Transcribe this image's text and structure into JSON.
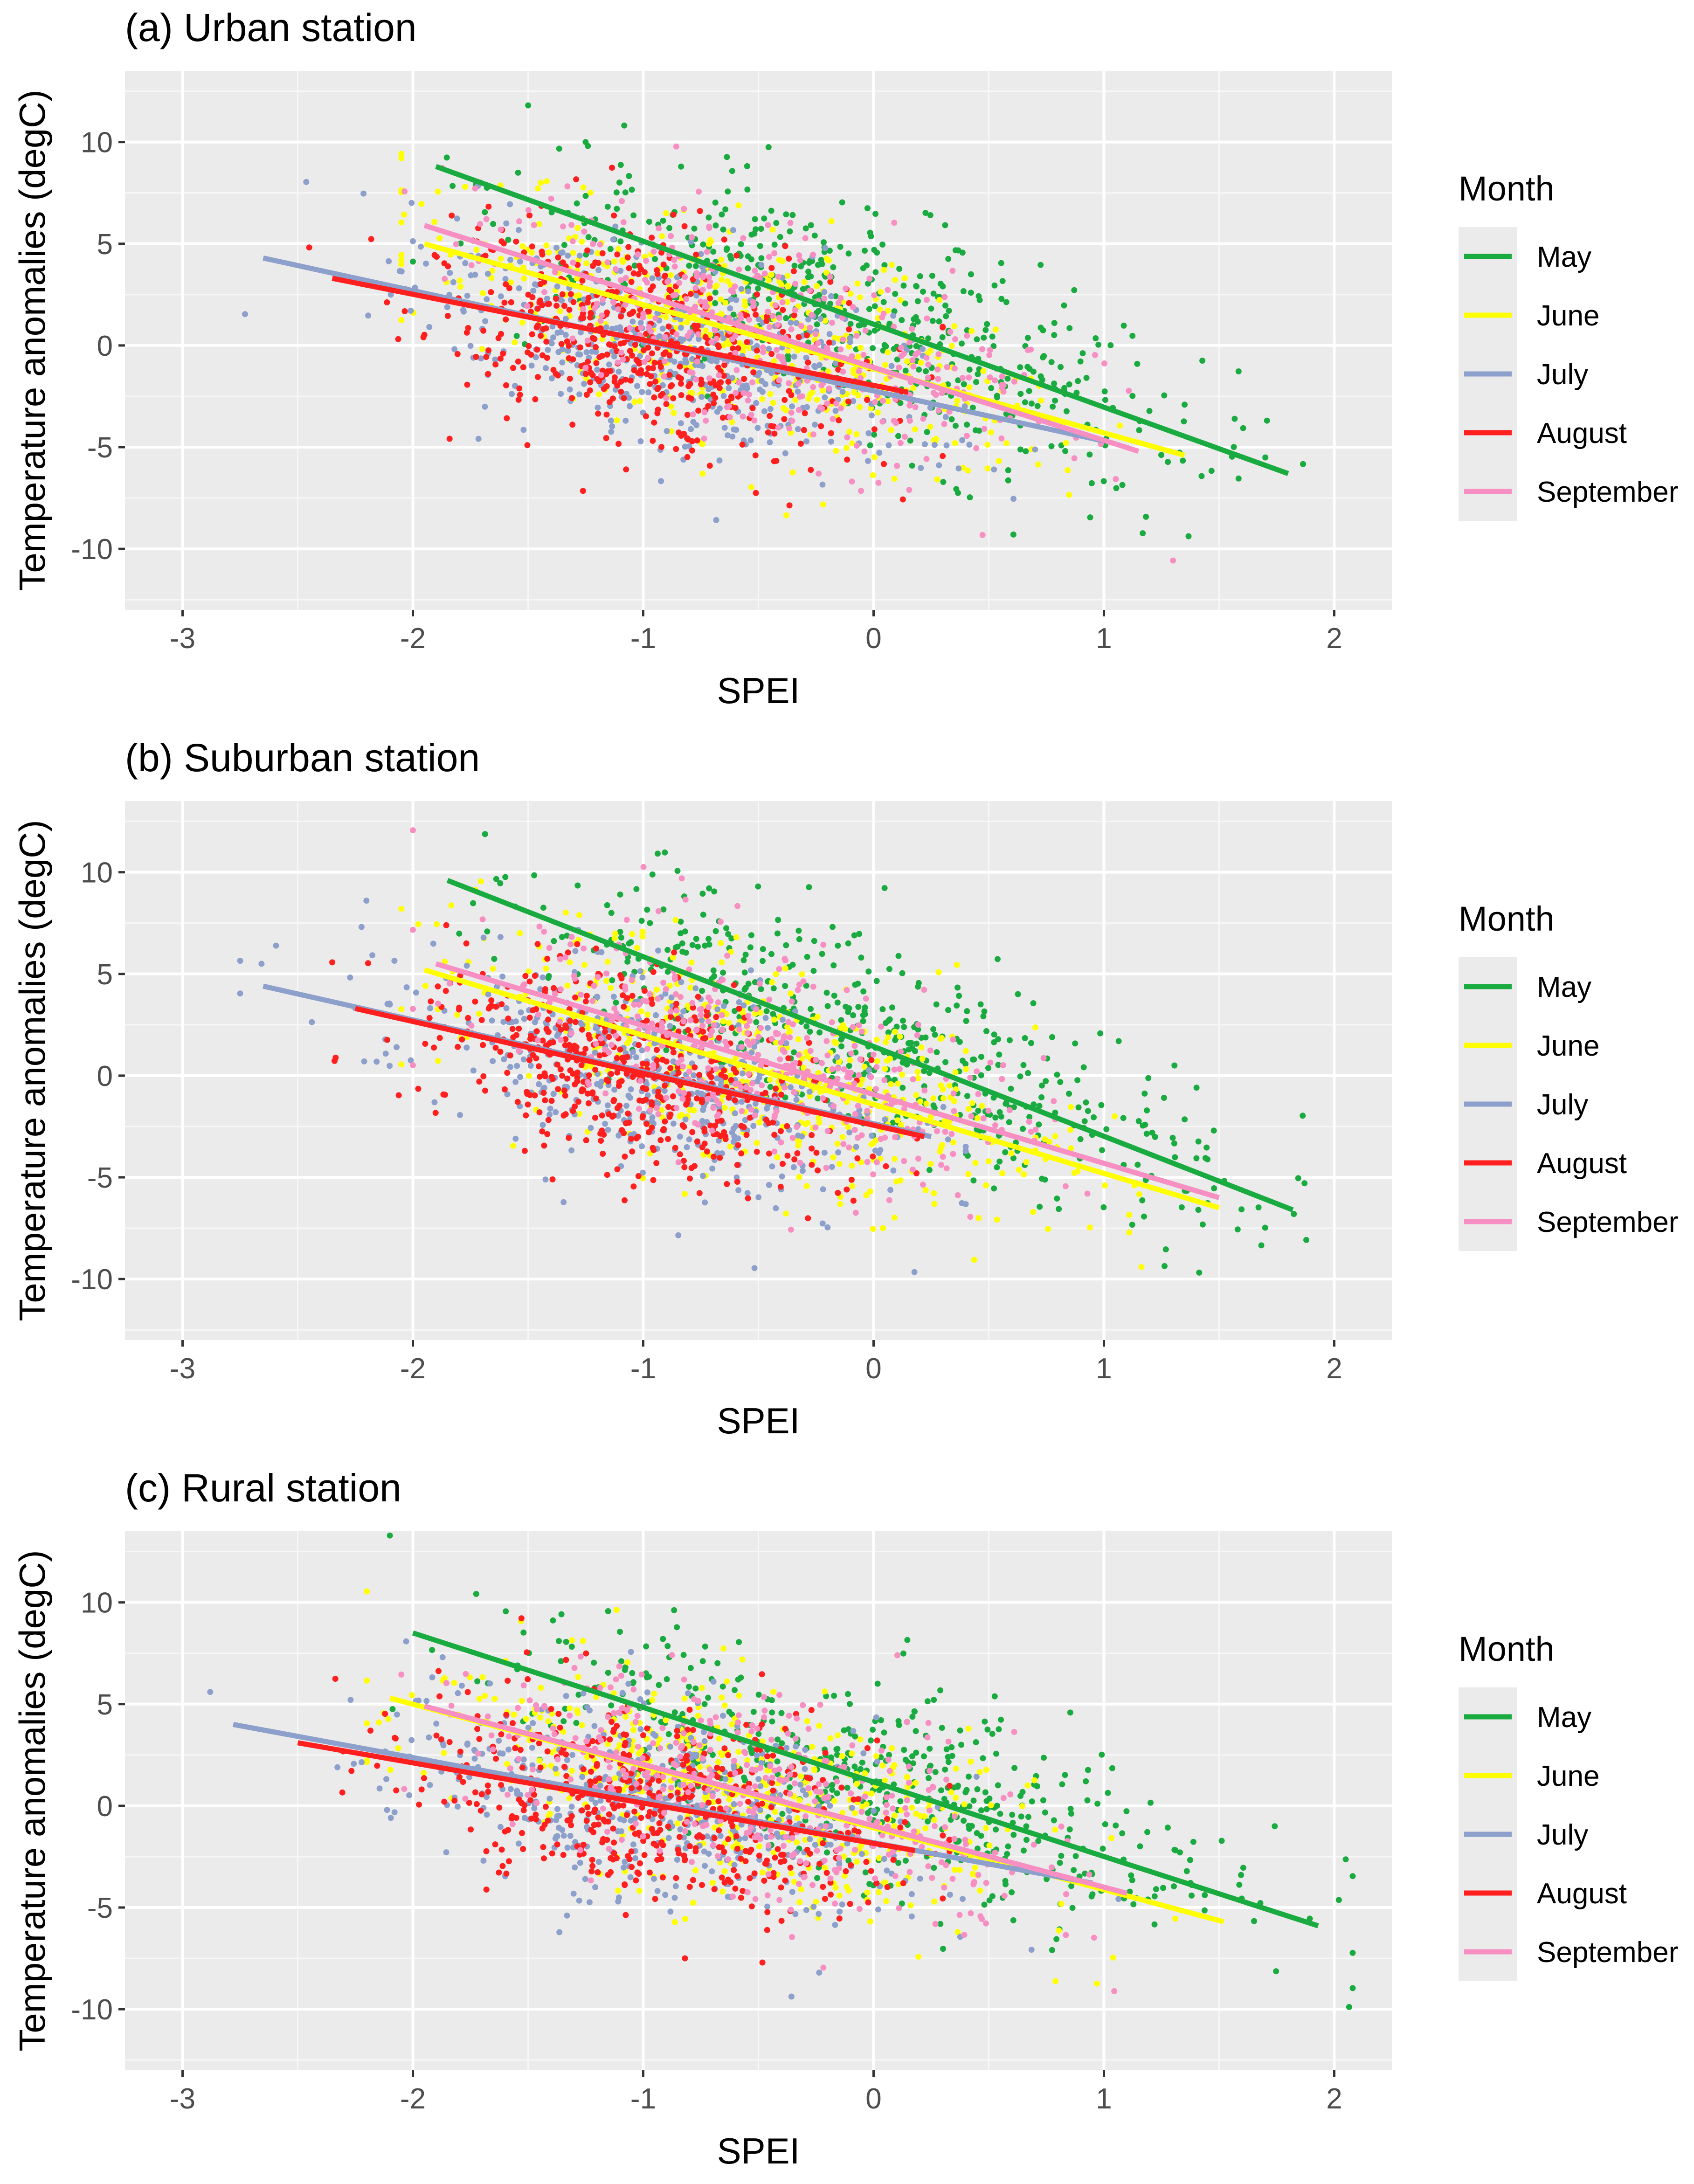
{
  "figure": {
    "legend_title": "Month",
    "months": [
      "May",
      "June",
      "July",
      "August",
      "September"
    ]
  },
  "colors": {
    "May": "#1aab40",
    "June": "#ffff00",
    "July": "#8da0cb",
    "August": "#ff1f1f",
    "September": "#f78fc3",
    "panel_bg": "#ebebeb",
    "grid_major": "#ffffff",
    "axis_text": "#4d4d4d",
    "title_text": "#000000"
  },
  "chart_data": [
    {
      "type": "scatter",
      "title": "(a) Urban station",
      "xlabel": "SPEI",
      "ylabel": "Temperature anomalies (degC)",
      "xlim": [
        -3.25,
        2.25
      ],
      "ylim": [
        -13,
        13.5
      ],
      "xticks": [
        -3,
        -2,
        -1,
        0,
        1,
        2
      ],
      "yticks": [
        -10,
        -5,
        0,
        5,
        10
      ],
      "legend_position": "right",
      "series": [
        {
          "name": "May",
          "center": [
            -0.05,
            1.2
          ],
          "spread": [
            0.75,
            3.1
          ],
          "n": 520,
          "fit": {
            "x": [
              -1.9,
              1.8
            ],
            "y": [
              8.8,
              -6.3
            ]
          }
        },
        {
          "name": "June",
          "center": [
            -0.55,
            0.4
          ],
          "spread": [
            0.65,
            3.0
          ],
          "n": 500,
          "fit": {
            "x": [
              -1.95,
              1.35
            ],
            "y": [
              5.0,
              -5.4
            ]
          }
        },
        {
          "name": "July",
          "center": [
            -0.85,
            -0.7
          ],
          "spread": [
            0.6,
            2.4
          ],
          "n": 480,
          "fit": {
            "x": [
              -2.65,
              1.0
            ],
            "y": [
              4.3,
              -4.7
            ]
          }
        },
        {
          "name": "August",
          "center": [
            -1.0,
            -0.1
          ],
          "spread": [
            0.45,
            2.2
          ],
          "n": 520,
          "fit": {
            "x": [
              -2.35,
              0.15
            ],
            "y": [
              3.3,
              -2.3
            ]
          }
        },
        {
          "name": "September",
          "center": [
            -0.45,
            0.2
          ],
          "spread": [
            0.6,
            2.6
          ],
          "n": 380,
          "fit": {
            "x": [
              -1.95,
              1.15
            ],
            "y": [
              5.9,
              -5.2
            ]
          }
        }
      ]
    },
    {
      "type": "scatter",
      "title": "(b) Suburban station",
      "xlabel": "SPEI",
      "ylabel": "Temperature anomalies (degC)",
      "xlim": [
        -3.25,
        2.25
      ],
      "ylim": [
        -13,
        13.5
      ],
      "xticks": [
        -3,
        -2,
        -1,
        0,
        1,
        2
      ],
      "yticks": [
        -10,
        -5,
        0,
        5,
        10
      ],
      "legend_position": "right",
      "series": [
        {
          "name": "May",
          "center": [
            0.05,
            1.0
          ],
          "spread": [
            0.75,
            3.1
          ],
          "n": 500,
          "fit": {
            "x": [
              -1.85,
              1.82
            ],
            "y": [
              9.6,
              -6.6
            ]
          }
        },
        {
          "name": "June",
          "center": [
            -0.5,
            0.6
          ],
          "spread": [
            0.65,
            3.0
          ],
          "n": 480,
          "fit": {
            "x": [
              -1.95,
              1.5
            ],
            "y": [
              5.2,
              -6.5
            ]
          }
        },
        {
          "name": "July",
          "center": [
            -0.95,
            -0.6
          ],
          "spread": [
            0.55,
            2.4
          ],
          "n": 480,
          "fit": {
            "x": [
              -2.65,
              0.25
            ],
            "y": [
              4.4,
              -3.0
            ]
          }
        },
        {
          "name": "August",
          "center": [
            -1.05,
            -0.3
          ],
          "spread": [
            0.45,
            2.2
          ],
          "n": 520,
          "fit": {
            "x": [
              -2.25,
              0.22
            ],
            "y": [
              3.3,
              -3.0
            ]
          }
        },
        {
          "name": "September",
          "center": [
            -0.5,
            0.3
          ],
          "spread": [
            0.6,
            2.6
          ],
          "n": 380,
          "fit": {
            "x": [
              -1.9,
              1.5
            ],
            "y": [
              5.5,
              -6.0
            ]
          }
        }
      ]
    },
    {
      "type": "scatter",
      "title": "(c) Rural station",
      "xlabel": "SPEI",
      "ylabel": "Temperature anomalies (degC)",
      "xlim": [
        -3.25,
        2.25
      ],
      "ylim": [
        -13,
        13.5
      ],
      "xticks": [
        -3,
        -2,
        -1,
        0,
        1,
        2
      ],
      "yticks": [
        -10,
        -5,
        0,
        5,
        10
      ],
      "legend_position": "right",
      "series": [
        {
          "name": "May",
          "center": [
            -0.05,
            0.8
          ],
          "spread": [
            0.8,
            3.1
          ],
          "n": 500,
          "fit": {
            "x": [
              -2.0,
              1.93
            ],
            "y": [
              8.5,
              -5.9
            ]
          }
        },
        {
          "name": "June",
          "center": [
            -0.6,
            0.5
          ],
          "spread": [
            0.7,
            3.0
          ],
          "n": 480,
          "fit": {
            "x": [
              -2.1,
              1.52
            ],
            "y": [
              5.3,
              -5.7
            ]
          }
        },
        {
          "name": "July",
          "center": [
            -0.95,
            -0.5
          ],
          "spread": [
            0.6,
            2.4
          ],
          "n": 460,
          "fit": {
            "x": [
              -2.78,
              0.95
            ],
            "y": [
              4.0,
              -3.8
            ]
          }
        },
        {
          "name": "August",
          "center": [
            -0.95,
            0.0
          ],
          "spread": [
            0.5,
            2.2
          ],
          "n": 500,
          "fit": {
            "x": [
              -2.5,
              0.18
            ],
            "y": [
              3.1,
              -2.2
            ]
          }
        },
        {
          "name": "September",
          "center": [
            -0.55,
            0.3
          ],
          "spread": [
            0.6,
            2.6
          ],
          "n": 380,
          "fit": {
            "x": [
              -1.95,
              1.1
            ],
            "y": [
              4.9,
              -4.3
            ]
          }
        }
      ]
    }
  ]
}
